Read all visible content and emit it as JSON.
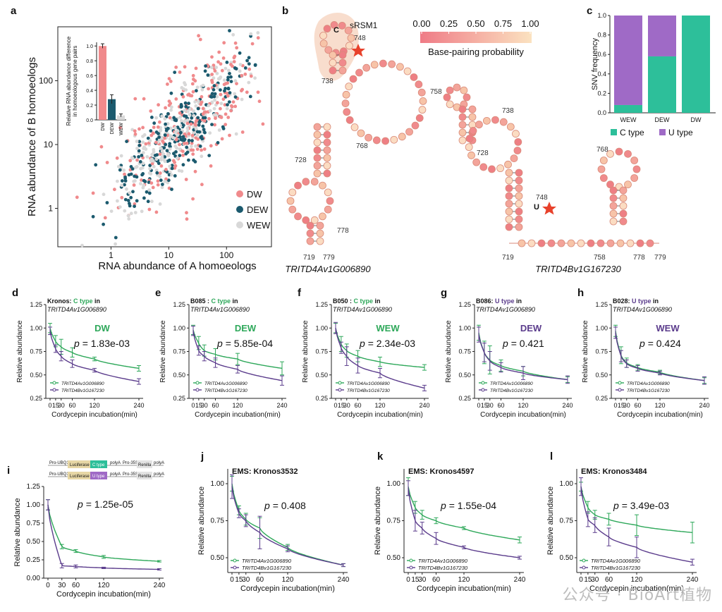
{
  "colors": {
    "dw": "#f08a8c",
    "dew": "#1b5a6e",
    "wew": "#d8d8d8",
    "green": "#2ea85a",
    "purple": "#5b3c8c",
    "c_type": "#2dbf9a",
    "u_type": "#9f6ac6",
    "star": "#e8412b"
  },
  "panels": {
    "a": {
      "label": "a",
      "xlabel": "RNA abundance of A homoeologs",
      "ylabel": "RNA abundance of B homoeologs",
      "xticks": [
        "1",
        "10",
        "100"
      ],
      "yticks": [
        "1",
        "10",
        "100"
      ],
      "legend": [
        "DW",
        "DEW",
        "WEW"
      ],
      "inset_ylabel": "Relative RNA abundance difference in homoeologous gene pairs",
      "inset_yticks": [
        "0.0",
        "0.2",
        "0.4",
        "0.6",
        "0.8",
        "1.0"
      ],
      "inset_categories": [
        "DW",
        "DEW",
        "WEW"
      ]
    },
    "b": {
      "label": "b",
      "title_left": "TRITD4Av1G006890",
      "title_right": "TRITD4Bv1G167230",
      "srsm": "sRSM1",
      "colorbar_title": "Base-pairing probability",
      "colorbar_ticks": [
        "0.00",
        "0.25",
        "0.50",
        "0.75",
        "1.00"
      ],
      "positions_left": [
        "748",
        "738",
        "758",
        "768",
        "728",
        "778",
        "719",
        "779"
      ],
      "positions_right": [
        "738",
        "728",
        "748",
        "768",
        "719",
        "758",
        "778",
        "779"
      ],
      "mark_left": "C",
      "mark_right": "U"
    },
    "c": {
      "label": "c",
      "ylabel": "SNV frequency",
      "yticks": [
        "0.0",
        "0.2",
        "0.4",
        "0.6",
        "0.8",
        "1.0"
      ],
      "categories": [
        "WEW",
        "DEW",
        "DW"
      ],
      "legend": [
        "C type",
        "U type"
      ]
    },
    "decay": {
      "xlabel": "Cordycepin incubation(min)",
      "ylabel": "Relative abundance",
      "xticks": [
        "0",
        "15",
        "30",
        "60",
        "120",
        "240"
      ],
      "series_names": [
        "TRITD4Av1G006890",
        "TRITD4Bv1G167230"
      ]
    },
    "d": {
      "label": "d",
      "head1": "Kronos:",
      "type": "C type",
      "tail": "in",
      "gene": "TRITD4Av1G006890",
      "group": "DW",
      "p": "= 1.83e-03"
    },
    "e": {
      "label": "e",
      "head1": "B085 :",
      "type": "C type",
      "tail": "in",
      "gene": "TRITD4Av1G006890",
      "group": "DEW",
      "p": "= 5.85e-04"
    },
    "f": {
      "label": "f",
      "head1": "B050 :",
      "type": "C type",
      "tail": "in",
      "gene": "TRITD4Av1G006890",
      "group": "WEW",
      "p": "= 2.34e-03"
    },
    "g": {
      "label": "g",
      "head1": "B086:",
      "type": "U type",
      "tail": "in",
      "gene": "TRITD4Av1G006890",
      "group": "DEW",
      "p": "= 0.421"
    },
    "h": {
      "label": "h",
      "head1": "B028:",
      "type": "U type",
      "tail": "in",
      "gene": "TRITD4Av1G006890",
      "group": "WEW",
      "p": "= 0.424"
    },
    "i": {
      "label": "i",
      "p": "= 1.25e-05",
      "construct": {
        "promoter": "Pro-UBQ11",
        "luc": "Luciferase",
        "c": "C type",
        "u": "U type",
        "polya": "polyA",
        "pro35s": "Pro-35S",
        "renilla": "Renilla"
      }
    },
    "j": {
      "label": "j",
      "title": "EMS: Kronos3532",
      "p": "= 0.408"
    },
    "k": {
      "label": "k",
      "title": "EMS: Kronos4597",
      "p": "= 1.55e-04"
    },
    "l": {
      "label": "l",
      "title": "EMS: Kronos3484",
      "p": "= 3.49e-03"
    }
  },
  "watermark": "公众号 · BioArt植物",
  "chart_data": [
    {
      "panel": "a",
      "type": "scatter",
      "xlabel": "RNA abundance of A homoeologs",
      "ylabel": "RNA abundance of B homoeologs",
      "xscale": "log",
      "yscale": "log",
      "xlim": [
        0.12,
        600
      ],
      "ylim": [
        0.25,
        700
      ],
      "series": [
        {
          "name": "DW"
        },
        {
          "name": "DEW"
        },
        {
          "name": "WEW"
        }
      ],
      "note_points": "cloud of several hundred points along the diagonal, densest around 1–100"
    },
    {
      "panel": "a-inset",
      "type": "bar",
      "ylabel": "Relative RNA abundance difference in homoeologous gene pairs",
      "categories": [
        "DW",
        "DEW",
        "WEW"
      ],
      "values": [
        1.0,
        0.28,
        0.06
      ],
      "errors": [
        0.03,
        0.06,
        0.02
      ],
      "ylim": [
        0,
        1.05
      ]
    },
    {
      "panel": "c",
      "type": "bar",
      "ylabel": "SNV frequency",
      "categories": [
        "WEW",
        "DEW",
        "DW"
      ],
      "series": [
        {
          "name": "C type",
          "values": [
            0.08,
            0.58,
            1.0
          ]
        },
        {
          "name": "U type",
          "values": [
            0.92,
            0.42,
            0.0
          ]
        }
      ],
      "ylim": [
        0,
        1
      ]
    },
    {
      "panel": "d",
      "type": "line",
      "x": [
        0,
        15,
        30,
        60,
        120,
        240
      ],
      "ylim": [
        0.25,
        1.25
      ],
      "series": [
        {
          "name": "TRITD4Av1G006890",
          "values": [
            1.0,
            0.86,
            0.8,
            0.74,
            0.67,
            0.57
          ],
          "errors": [
            0.05,
            0.06,
            0.08,
            0.05,
            0.02,
            0.03
          ]
        },
        {
          "name": "TRITD4Bv1G167230",
          "values": [
            0.97,
            0.78,
            0.7,
            0.62,
            0.55,
            0.43
          ],
          "errors": [
            0.04,
            0.04,
            0.05,
            0.04,
            0.02,
            0.03
          ]
        }
      ]
    },
    {
      "panel": "e",
      "type": "line",
      "x": [
        0,
        15,
        30,
        60,
        120,
        240
      ],
      "ylim": [
        0.25,
        1.25
      ],
      "series": [
        {
          "name": "TRITD4Av1G006890",
          "values": [
            0.98,
            0.84,
            0.76,
            0.72,
            0.67,
            0.57
          ],
          "errors": [
            0.05,
            0.07,
            0.06,
            0.06,
            0.06,
            0.07
          ]
        },
        {
          "name": "TRITD4Bv1G167230",
          "values": [
            0.97,
            0.76,
            0.7,
            0.63,
            0.56,
            0.44
          ],
          "errors": [
            0.05,
            0.05,
            0.05,
            0.05,
            0.04,
            0.05
          ]
        }
      ]
    },
    {
      "panel": "f",
      "type": "line",
      "x": [
        0,
        15,
        30,
        60,
        120,
        240
      ],
      "ylim": [
        0.25,
        1.25
      ],
      "series": [
        {
          "name": "TRITD4Av1G006890",
          "values": [
            1.0,
            0.83,
            0.76,
            0.7,
            0.64,
            0.58
          ],
          "errors": [
            0.05,
            0.08,
            0.07,
            0.06,
            0.05,
            0.03
          ]
        },
        {
          "name": "TRITD4Bv1G167230",
          "values": [
            1.0,
            0.79,
            0.7,
            0.6,
            0.52,
            0.36
          ],
          "errors": [
            0.06,
            0.06,
            0.1,
            0.08,
            0.05,
            0.03
          ]
        }
      ]
    },
    {
      "panel": "g",
      "type": "line",
      "x": [
        0,
        15,
        30,
        60,
        120,
        240
      ],
      "ylim": [
        0.25,
        1.25
      ],
      "series": [
        {
          "name": "TRITD4Av1G006890",
          "values": [
            0.95,
            0.74,
            0.66,
            0.6,
            0.54,
            0.45
          ],
          "errors": [
            0.08,
            0.12,
            0.15,
            0.06,
            0.05,
            0.03
          ]
        },
        {
          "name": "TRITD4Bv1G167230",
          "values": [
            0.93,
            0.74,
            0.65,
            0.58,
            0.52,
            0.45
          ],
          "errors": [
            0.08,
            0.1,
            0.1,
            0.05,
            0.07,
            0.04
          ]
        }
      ]
    },
    {
      "panel": "h",
      "type": "line",
      "x": [
        0,
        15,
        30,
        60,
        120,
        240
      ],
      "ylim": [
        0.25,
        1.25
      ],
      "series": [
        {
          "name": "TRITD4Av1G006890",
          "values": [
            0.97,
            0.71,
            0.63,
            0.58,
            0.53,
            0.44
          ],
          "errors": [
            0.06,
            0.09,
            0.05,
            0.03,
            0.02,
            0.03
          ]
        },
        {
          "name": "TRITD4Bv1G167230",
          "values": [
            0.95,
            0.7,
            0.62,
            0.57,
            0.52,
            0.44
          ],
          "errors": [
            0.06,
            0.06,
            0.04,
            0.03,
            0.02,
            0.04
          ]
        }
      ]
    },
    {
      "panel": "i",
      "type": "line",
      "x": [
        0,
        30,
        60,
        120,
        240
      ],
      "ylim": [
        0,
        1.25
      ],
      "series": [
        {
          "name": "C type",
          "values": [
            1.0,
            0.43,
            0.37,
            0.29,
            0.23
          ],
          "errors": [
            0.07,
            0.03,
            0.02,
            0.02,
            0.01
          ]
        },
        {
          "name": "U type",
          "values": [
            1.0,
            0.17,
            0.16,
            0.14,
            0.12
          ],
          "errors": [
            0.07,
            0.03,
            0.02,
            0.01,
            0.01
          ]
        }
      ]
    },
    {
      "panel": "j",
      "type": "line",
      "x": [
        0,
        15,
        30,
        60,
        120,
        240
      ],
      "ylim": [
        0.4,
        1.1
      ],
      "series": [
        {
          "name": "TRITD4Av1G006890",
          "values": [
            1.0,
            0.82,
            0.76,
            0.7,
            0.57,
            0.45
          ],
          "errors": [
            0.05,
            0.03,
            0.04,
            0.07,
            0.02,
            0.01
          ]
        },
        {
          "name": "TRITD4Bv1G167230",
          "values": [
            0.98,
            0.8,
            0.75,
            0.67,
            0.56,
            0.45
          ],
          "errors": [
            0.08,
            0.03,
            0.04,
            0.11,
            0.02,
            0.01
          ]
        }
      ]
    },
    {
      "panel": "k",
      "type": "line",
      "x": [
        0,
        15,
        30,
        60,
        120,
        240
      ],
      "ylim": [
        0.4,
        1.1
      ],
      "series": [
        {
          "name": "TRITD4Av1G006890",
          "values": [
            0.98,
            0.84,
            0.79,
            0.75,
            0.7,
            0.62
          ],
          "errors": [
            0.06,
            0.04,
            0.03,
            0.02,
            0.01,
            0.02
          ]
        },
        {
          "name": "TRITD4Bv1G167230",
          "values": [
            0.97,
            0.75,
            0.7,
            0.63,
            0.57,
            0.5
          ],
          "errors": [
            0.05,
            0.07,
            0.04,
            0.04,
            0.01,
            0.01
          ]
        }
      ]
    },
    {
      "panel": "l",
      "type": "line",
      "x": [
        0,
        15,
        30,
        60,
        120,
        240
      ],
      "ylim": [
        0.4,
        1.1
      ],
      "series": [
        {
          "name": "TRITD4Av1G006890",
          "values": [
            0.98,
            0.84,
            0.79,
            0.76,
            0.72,
            0.67
          ],
          "errors": [
            0.03,
            0.04,
            0.03,
            0.04,
            0.07,
            0.07
          ]
        },
        {
          "name": "TRITD4Bv1G167230",
          "values": [
            0.98,
            0.76,
            0.72,
            0.64,
            0.57,
            0.47
          ],
          "errors": [
            0.06,
            0.05,
            0.05,
            0.06,
            0.07,
            0.02
          ]
        }
      ]
    }
  ]
}
